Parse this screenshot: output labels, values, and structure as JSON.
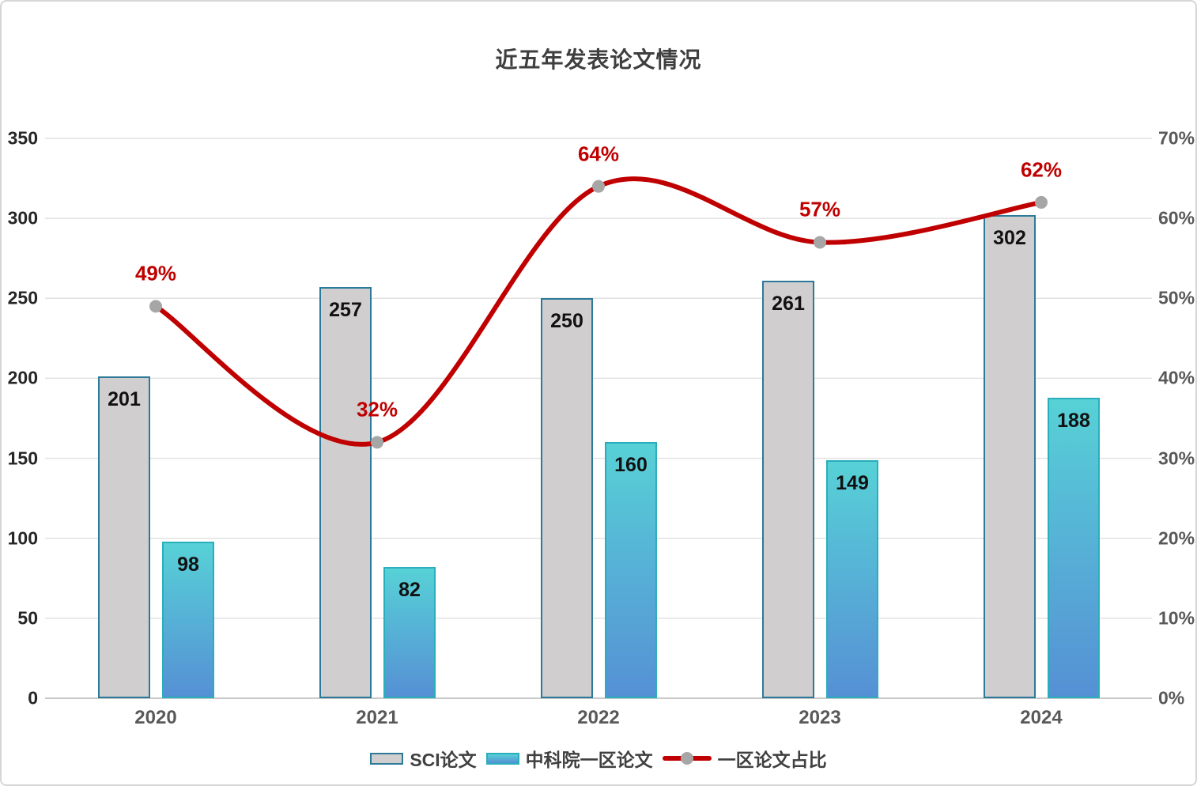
{
  "title": "近五年发表论文情况",
  "chart_data": {
    "type": "bar",
    "subtype": "combo-bar-line-dual-axis",
    "title": "近五年发表论文情况",
    "categories": [
      "2020",
      "2021",
      "2022",
      "2023",
      "2024"
    ],
    "series": [
      {
        "name": "SCI论文",
        "type": "bar",
        "axis": "left",
        "values": [
          201,
          257,
          250,
          261,
          302
        ],
        "fill_color": "#D0CECE",
        "border_color": "#2C7A97"
      },
      {
        "name": "中科院一区论文",
        "type": "bar",
        "axis": "left",
        "values": [
          98,
          82,
          160,
          149,
          188
        ],
        "gradient_top": "#57D1D6",
        "gradient_bottom": "#5590D5",
        "border_color": "#29AEBB"
      },
      {
        "name": "一区论文占比",
        "type": "line",
        "axis": "right",
        "values": [
          49,
          32,
          64,
          57,
          62
        ],
        "labels": [
          "49%",
          "32%",
          "64%",
          "57%",
          "62%"
        ],
        "line_color": "#C00000",
        "marker_color": "#A6A6A6",
        "smooth": true
      }
    ],
    "left_axis": {
      "min": 0,
      "max": 350,
      "ticks": [
        "350",
        "300",
        "250",
        "200",
        "150",
        "100",
        "50",
        "0"
      ]
    },
    "right_axis": {
      "min": 0,
      "max": 70,
      "ticks": [
        "70%",
        "60%",
        "50%",
        "40%",
        "30%",
        "20%",
        "10%",
        "0%"
      ]
    },
    "grid": true,
    "legend_position": "bottom"
  },
  "legend": {
    "items": [
      {
        "label": "SCI论文"
      },
      {
        "label": "中科院一区论文"
      },
      {
        "label": "一区论文占比"
      }
    ]
  },
  "colors": {
    "accent_red": "#C00000",
    "marker_gray": "#A6A6A6",
    "gridline": "#E2E2E2",
    "baseline": "#C9C9C9",
    "title_text": "#3F3F3F",
    "axis_text_left": "#262626",
    "axis_text_right": "#595959"
  }
}
